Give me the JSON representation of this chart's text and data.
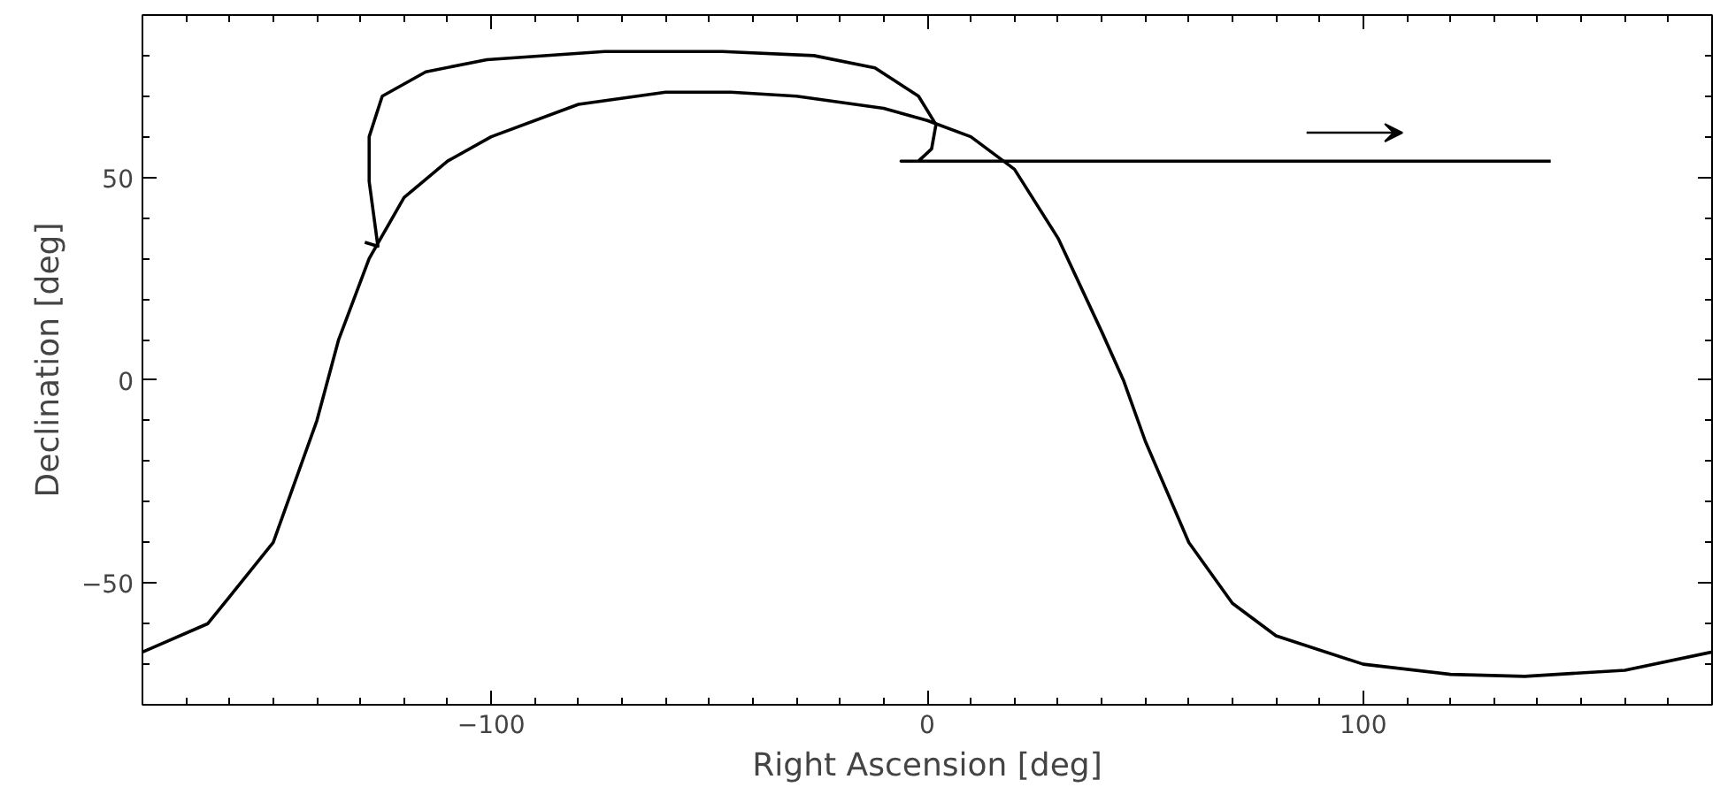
{
  "chart_data": {
    "type": "line",
    "xlabel": "Right Ascension [deg]",
    "ylabel": "Declination [deg]",
    "xlim": [
      -180,
      180
    ],
    "ylim": [
      -80,
      90
    ],
    "xticks": [
      -100,
      0,
      100
    ],
    "yticks": [
      -50,
      0,
      50
    ],
    "grid": false,
    "marker": "none",
    "line_style": "solid",
    "series": [
      {
        "color": "#000000",
        "x": [
          -180,
          -165,
          -150,
          -140,
          -135,
          -128,
          -120,
          -110,
          -100,
          -80,
          -60,
          -45,
          -30,
          -10,
          0,
          10,
          20,
          30,
          40,
          45,
          50,
          60,
          70,
          80,
          100,
          120,
          137,
          160,
          180
        ],
        "values": [
          -67,
          -60,
          -40,
          -10,
          10,
          30,
          45,
          54,
          60,
          68,
          71,
          71,
          70,
          67,
          64,
          60,
          52,
          35,
          12,
          0,
          -15,
          -40,
          -55,
          -63,
          -70,
          -72.5,
          -73,
          -71.5,
          -67
        ]
      },
      {
        "color": "#000000",
        "x": [
          -129,
          -126,
          -128,
          -128,
          -125,
          -115,
          -101,
          -74,
          -47,
          -26,
          -12,
          -2,
          2,
          1,
          -2,
          -6,
          143
        ],
        "values": [
          34,
          33,
          49,
          60,
          70,
          76,
          79,
          81,
          81,
          80,
          77,
          70,
          63,
          57,
          54,
          54,
          54
        ]
      }
    ]
  }
}
